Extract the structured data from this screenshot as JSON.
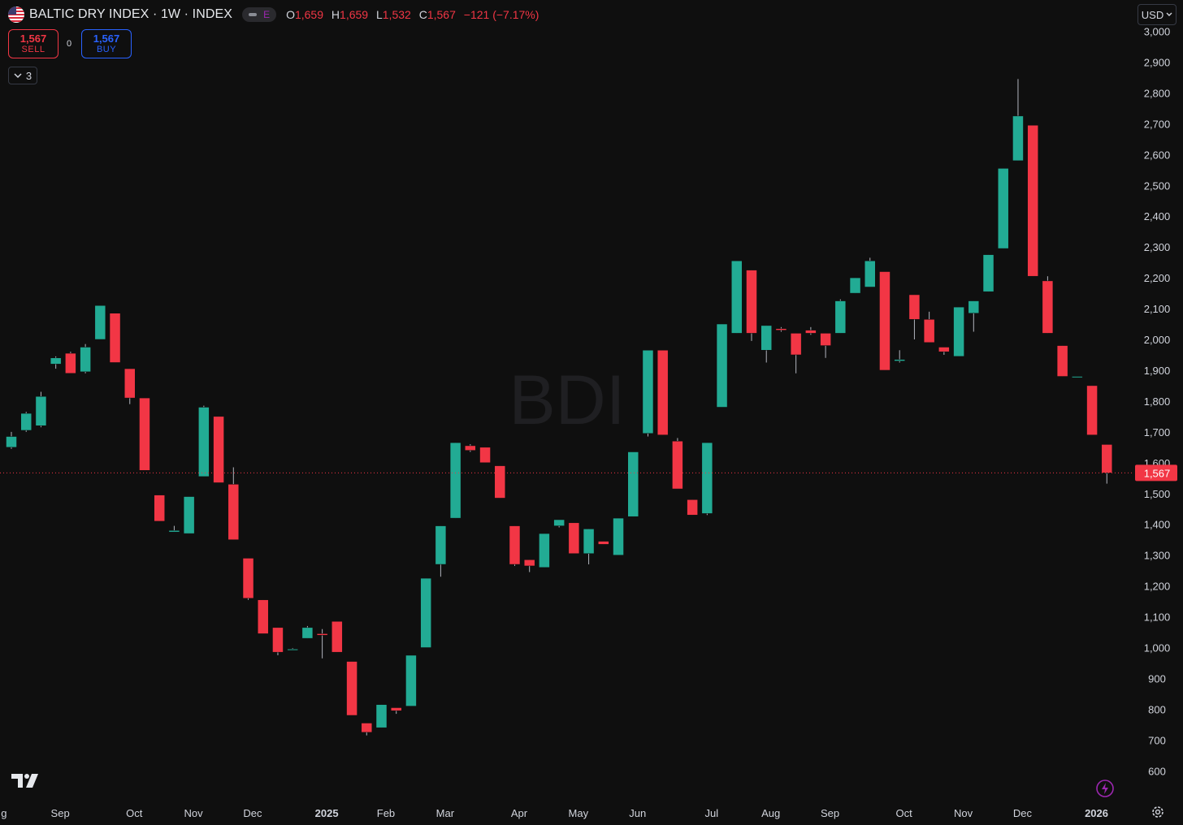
{
  "header": {
    "title": "BALTIC DRY INDEX · 1W · INDEX",
    "flag_icon": "us-flag-icon",
    "exchange_badge": "E",
    "ohlc": [
      {
        "key": "O",
        "value": "1,659"
      },
      {
        "key": "H",
        "value": "1,659"
      },
      {
        "key": "L",
        "value": "1,532"
      },
      {
        "key": "C",
        "value": "1,567"
      }
    ],
    "change": "−121 (−7.17%)"
  },
  "trade": {
    "sell_price": "1,567",
    "sell_label": "SELL",
    "spread": "0",
    "buy_price": "1,567",
    "buy_label": "BUY"
  },
  "indicators_toggle": {
    "count": "3",
    "icon": "chevron-down-icon"
  },
  "currency": "USD",
  "watermark": "BDI",
  "colors": {
    "up": "#22ab94",
    "down": "#f23645",
    "background": "#0f0f0f",
    "price_line": "#f23645"
  },
  "chart_data": {
    "type": "candlestick",
    "symbol": "BALTIC DRY INDEX",
    "interval": "1W",
    "y_range": [
      555,
      3000
    ],
    "y_ticks": [
      3000,
      2900,
      2800,
      2700,
      2600,
      2500,
      2400,
      2300,
      2200,
      2100,
      2000,
      1900,
      1800,
      1700,
      1600,
      1500,
      1400,
      1300,
      1200,
      1100,
      1000,
      900,
      800,
      700,
      600
    ],
    "last_price": 1567,
    "last_price_label": "1,567",
    "x_labels": [
      {
        "label": "g",
        "bar": -0.5
      },
      {
        "label": "Sep",
        "bar": 3.3
      },
      {
        "label": "Oct",
        "bar": 8.3
      },
      {
        "label": "Nov",
        "bar": 12.3
      },
      {
        "label": "Dec",
        "bar": 16.3
      },
      {
        "label": "2025",
        "bar": 21.3,
        "bold": true
      },
      {
        "label": "Feb",
        "bar": 25.3
      },
      {
        "label": "Mar",
        "bar": 29.3
      },
      {
        "label": "Apr",
        "bar": 34.3
      },
      {
        "label": "May",
        "bar": 38.3
      },
      {
        "label": "Jun",
        "bar": 42.3
      },
      {
        "label": "Jul",
        "bar": 47.3
      },
      {
        "label": "Aug",
        "bar": 51.3
      },
      {
        "label": "Sep",
        "bar": 55.3
      },
      {
        "label": "Oct",
        "bar": 60.3
      },
      {
        "label": "Nov",
        "bar": 64.3
      },
      {
        "label": "Dec",
        "bar": 68.3
      },
      {
        "label": "2026",
        "bar": 73.3,
        "bold": true
      }
    ],
    "candles": [
      {
        "o": 1650,
        "h": 1700,
        "l": 1645,
        "c": 1685
      },
      {
        "o": 1705,
        "h": 1765,
        "l": 1700,
        "c": 1760
      },
      {
        "o": 1720,
        "h": 1830,
        "l": 1715,
        "c": 1815
      },
      {
        "o": 1920,
        "h": 1945,
        "l": 1905,
        "c": 1940
      },
      {
        "o": 1955,
        "h": 1960,
        "l": 1890,
        "c": 1890
      },
      {
        "o": 1895,
        "h": 1985,
        "l": 1890,
        "c": 1975
      },
      {
        "o": 2000,
        "h": 2110,
        "l": 2000,
        "c": 2110
      },
      {
        "o": 2085,
        "h": 2085,
        "l": 1925,
        "c": 1925
      },
      {
        "o": 1905,
        "h": 1905,
        "l": 1790,
        "c": 1810
      },
      {
        "o": 1810,
        "h": 1810,
        "l": 1575,
        "c": 1575
      },
      {
        "o": 1495,
        "h": 1495,
        "l": 1410,
        "c": 1410
      },
      {
        "o": 1375,
        "h": 1395,
        "l": 1375,
        "c": 1380
      },
      {
        "o": 1370,
        "h": 1490,
        "l": 1370,
        "c": 1490
      },
      {
        "o": 1555,
        "h": 1785,
        "l": 1555,
        "c": 1780
      },
      {
        "o": 1750,
        "h": 1750,
        "l": 1535,
        "c": 1535
      },
      {
        "o": 1530,
        "h": 1585,
        "l": 1350,
        "c": 1350
      },
      {
        "o": 1290,
        "h": 1290,
        "l": 1155,
        "c": 1160
      },
      {
        "o": 1155,
        "h": 1155,
        "l": 1045,
        "c": 1045
      },
      {
        "o": 1065,
        "h": 1065,
        "l": 975,
        "c": 985
      },
      {
        "o": 995,
        "h": 998,
        "l": 995,
        "c": 995
      },
      {
        "o": 1030,
        "h": 1070,
        "l": 1030,
        "c": 1065
      },
      {
        "o": 1045,
        "h": 1060,
        "l": 965,
        "c": 1040
      },
      {
        "o": 1085,
        "h": 1085,
        "l": 985,
        "c": 985
      },
      {
        "o": 955,
        "h": 955,
        "l": 780,
        "c": 780
      },
      {
        "o": 755,
        "h": 755,
        "l": 715,
        "c": 725
      },
      {
        "o": 740,
        "h": 815,
        "l": 740,
        "c": 815
      },
      {
        "o": 805,
        "h": 805,
        "l": 785,
        "c": 795
      },
      {
        "o": 810,
        "h": 975,
        "l": 810,
        "c": 975
      },
      {
        "o": 1000,
        "h": 1225,
        "l": 1000,
        "c": 1225
      },
      {
        "o": 1270,
        "h": 1395,
        "l": 1230,
        "c": 1395
      },
      {
        "o": 1420,
        "h": 1665,
        "l": 1420,
        "c": 1665
      },
      {
        "o": 1655,
        "h": 1660,
        "l": 1635,
        "c": 1640
      },
      {
        "o": 1650,
        "h": 1650,
        "l": 1600,
        "c": 1600
      },
      {
        "o": 1590,
        "h": 1590,
        "l": 1485,
        "c": 1485
      },
      {
        "o": 1395,
        "h": 1395,
        "l": 1265,
        "c": 1270
      },
      {
        "o": 1285,
        "h": 1285,
        "l": 1245,
        "c": 1265
      },
      {
        "o": 1260,
        "h": 1370,
        "l": 1260,
        "c": 1370
      },
      {
        "o": 1395,
        "h": 1415,
        "l": 1390,
        "c": 1415
      },
      {
        "o": 1405,
        "h": 1405,
        "l": 1305,
        "c": 1305
      },
      {
        "o": 1305,
        "h": 1385,
        "l": 1270,
        "c": 1385
      },
      {
        "o": 1345,
        "h": 1345,
        "l": 1335,
        "c": 1335
      },
      {
        "o": 1300,
        "h": 1420,
        "l": 1300,
        "c": 1420
      },
      {
        "o": 1425,
        "h": 1635,
        "l": 1425,
        "c": 1635
      },
      {
        "o": 1695,
        "h": 1965,
        "l": 1685,
        "c": 1965
      },
      {
        "o": 1965,
        "h": 1965,
        "l": 1690,
        "c": 1690
      },
      {
        "o": 1670,
        "h": 1680,
        "l": 1515,
        "c": 1515
      },
      {
        "o": 1480,
        "h": 1480,
        "l": 1430,
        "c": 1430
      },
      {
        "o": 1435,
        "h": 1665,
        "l": 1430,
        "c": 1665
      },
      {
        "o": 1780,
        "h": 2050,
        "l": 1780,
        "c": 2050
      },
      {
        "o": 2020,
        "h": 2255,
        "l": 2020,
        "c": 2255
      },
      {
        "o": 2225,
        "h": 2225,
        "l": 1995,
        "c": 2020
      },
      {
        "o": 1965,
        "h": 2045,
        "l": 1925,
        "c": 2045
      },
      {
        "o": 2035,
        "h": 2040,
        "l": 2025,
        "c": 2030
      },
      {
        "o": 2020,
        "h": 2020,
        "l": 1890,
        "c": 1950
      },
      {
        "o": 2030,
        "h": 2040,
        "l": 2015,
        "c": 2020
      },
      {
        "o": 2020,
        "h": 2020,
        "l": 1940,
        "c": 1980
      },
      {
        "o": 2020,
        "h": 2130,
        "l": 2020,
        "c": 2125
      },
      {
        "o": 2150,
        "h": 2200,
        "l": 2150,
        "c": 2200
      },
      {
        "o": 2170,
        "h": 2265,
        "l": 2170,
        "c": 2255
      },
      {
        "o": 2220,
        "h": 2220,
        "l": 1900,
        "c": 1900
      },
      {
        "o": 1930,
        "h": 1965,
        "l": 1925,
        "c": 1935
      },
      {
        "o": 2145,
        "h": 2145,
        "l": 2000,
        "c": 2065
      },
      {
        "o": 2065,
        "h": 2090,
        "l": 1990,
        "c": 1990
      },
      {
        "o": 1975,
        "h": 1975,
        "l": 1950,
        "c": 1960
      },
      {
        "o": 1945,
        "h": 2105,
        "l": 1945,
        "c": 2105
      },
      {
        "o": 2085,
        "h": 2125,
        "l": 2025,
        "c": 2125
      },
      {
        "o": 2155,
        "h": 2275,
        "l": 2155,
        "c": 2275
      },
      {
        "o": 2295,
        "h": 2555,
        "l": 2295,
        "c": 2555
      },
      {
        "o": 2580,
        "h": 2845,
        "l": 2580,
        "c": 2725
      },
      {
        "o": 2695,
        "h": 2695,
        "l": 2205,
        "c": 2205
      },
      {
        "o": 2190,
        "h": 2205,
        "l": 2020,
        "c": 2020
      },
      {
        "o": 1980,
        "h": 1980,
        "l": 1880,
        "c": 1880
      },
      {
        "o": 1880,
        "h": 1880,
        "l": 1880,
        "c": 1880
      },
      {
        "o": 1850,
        "h": 1850,
        "l": 1690,
        "c": 1690
      },
      {
        "o": 1659,
        "h": 1659,
        "l": 1532,
        "c": 1567
      }
    ]
  }
}
